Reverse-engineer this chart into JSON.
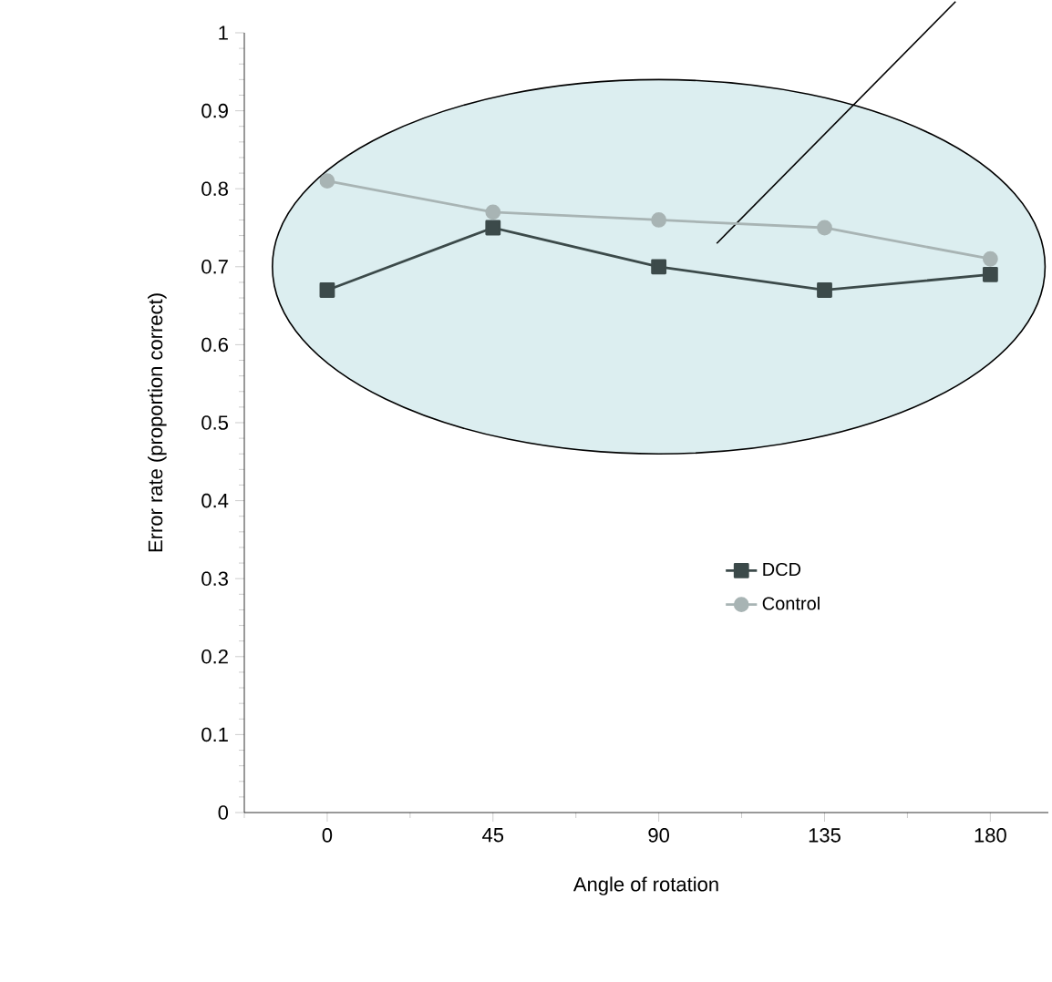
{
  "chart_data": {
    "type": "line",
    "xlabel": "Angle of rotation",
    "ylabel": "Error rate (proportion correct)",
    "categories": [
      "0",
      "45",
      "90",
      "135",
      "180"
    ],
    "ylim": [
      0,
      1
    ],
    "yticks": [
      0,
      0.1,
      0.2,
      0.3,
      0.4,
      0.5,
      0.6,
      0.7,
      0.8,
      0.9,
      1
    ],
    "series": [
      {
        "name": "DCD",
        "color": "#3c4a4a",
        "marker": "square",
        "values": [
          0.67,
          0.75,
          0.7,
          0.67,
          0.69
        ]
      },
      {
        "name": "Control",
        "color": "#a8b4b4",
        "marker": "circle",
        "values": [
          0.81,
          0.77,
          0.76,
          0.75,
          0.71
        ]
      }
    ],
    "legend": "bottom right",
    "grid": false
  }
}
